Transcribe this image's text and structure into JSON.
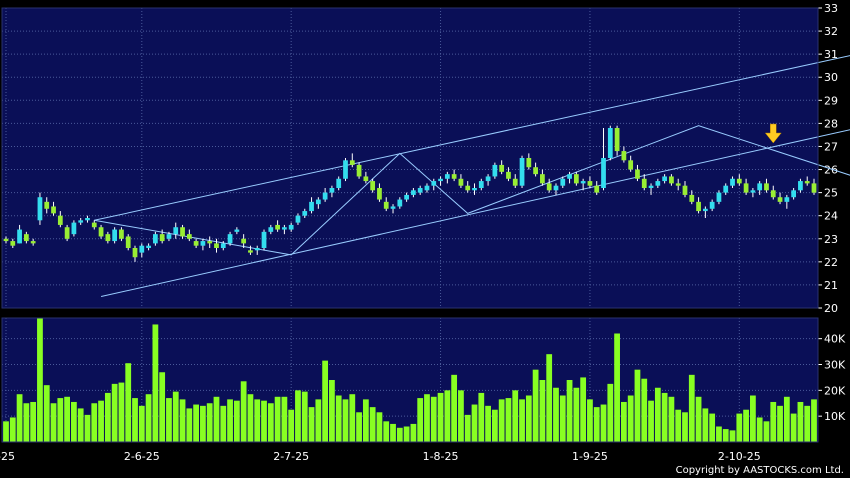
{
  "chart_data": {
    "type": "candlestick",
    "colors": {
      "background": "#000000",
      "panel": "#0a0f57",
      "grid": "#4a5a9a",
      "up": "#33ddee",
      "down": "#99ee33",
      "volume": "#88ff22",
      "trendline": "#99ccff",
      "arrow": "#ffcc22"
    },
    "price_axis": {
      "ylim": [
        20,
        33
      ],
      "ticks": [
        "20",
        "21",
        "22",
        "23",
        "24",
        "25",
        "26",
        "27",
        "28",
        "29",
        "30",
        "31",
        "32",
        "33"
      ]
    },
    "volume_axis": {
      "ylim": [
        0,
        48000
      ],
      "ticks": [
        "10K",
        "20K",
        "30K",
        "40K"
      ],
      "tick_values": [
        10000,
        20000,
        30000,
        40000
      ]
    },
    "x_ticks": [
      {
        "label": "-25",
        "index": 0
      },
      {
        "label": "2-6-25",
        "index": 20
      },
      {
        "label": "2-7-25",
        "index": 42
      },
      {
        "label": "1-8-25",
        "index": 64
      },
      {
        "label": "1-9-25",
        "index": 86
      },
      {
        "label": "2-10-25",
        "index": 108
      }
    ],
    "candles": [
      [
        23.0,
        23.1,
        22.8,
        22.9
      ],
      [
        22.9,
        23.0,
        22.6,
        22.7
      ],
      [
        22.8,
        23.6,
        22.8,
        23.4
      ],
      [
        23.2,
        23.3,
        22.8,
        22.9
      ],
      [
        22.9,
        23.0,
        22.7,
        22.8
      ],
      [
        23.8,
        25.0,
        23.6,
        24.8
      ],
      [
        24.6,
        24.8,
        24.1,
        24.3
      ],
      [
        24.4,
        24.6,
        24.0,
        24.1
      ],
      [
        24.0,
        24.2,
        23.5,
        23.6
      ],
      [
        23.5,
        23.6,
        22.9,
        23.0
      ],
      [
        23.2,
        23.8,
        23.1,
        23.7
      ],
      [
        23.7,
        23.9,
        23.6,
        23.8
      ],
      [
        23.8,
        24.0,
        23.7,
        23.9
      ],
      [
        23.7,
        23.8,
        23.4,
        23.5
      ],
      [
        23.5,
        23.6,
        23.0,
        23.1
      ],
      [
        23.2,
        23.3,
        22.8,
        22.9
      ],
      [
        22.9,
        23.5,
        22.8,
        23.4
      ],
      [
        23.4,
        23.5,
        22.9,
        23.0
      ],
      [
        23.1,
        23.2,
        22.5,
        22.6
      ],
      [
        22.6,
        22.7,
        22.0,
        22.2
      ],
      [
        22.4,
        22.8,
        22.2,
        22.7
      ],
      [
        22.6,
        22.8,
        22.5,
        22.7
      ],
      [
        22.8,
        23.3,
        22.7,
        23.2
      ],
      [
        23.2,
        23.4,
        22.8,
        22.9
      ],
      [
        23.0,
        23.3,
        22.9,
        23.2
      ],
      [
        23.2,
        23.7,
        23.0,
        23.5
      ],
      [
        23.5,
        23.6,
        23.0,
        23.1
      ],
      [
        23.2,
        23.4,
        22.9,
        23.0
      ],
      [
        22.9,
        23.0,
        22.6,
        22.7
      ],
      [
        22.7,
        23.0,
        22.5,
        22.9
      ],
      [
        22.9,
        23.1,
        22.6,
        22.8
      ],
      [
        22.8,
        23.0,
        22.4,
        22.6
      ],
      [
        22.6,
        22.9,
        22.5,
        22.8
      ],
      [
        22.8,
        23.3,
        22.7,
        23.2
      ],
      [
        23.3,
        23.5,
        23.2,
        23.4
      ],
      [
        23.0,
        23.2,
        22.6,
        22.8
      ],
      [
        22.5,
        22.7,
        22.3,
        22.4
      ],
      [
        22.5,
        22.7,
        22.3,
        22.6
      ],
      [
        22.6,
        23.4,
        22.5,
        23.3
      ],
      [
        23.3,
        23.6,
        23.2,
        23.5
      ],
      [
        23.6,
        23.8,
        23.3,
        23.4
      ],
      [
        23.4,
        23.6,
        23.2,
        23.5
      ],
      [
        23.4,
        23.7,
        23.3,
        23.6
      ],
      [
        23.7,
        24.1,
        23.6,
        24.0
      ],
      [
        24.0,
        24.3,
        23.9,
        24.2
      ],
      [
        24.2,
        24.8,
        24.1,
        24.6
      ],
      [
        24.5,
        24.8,
        24.3,
        24.7
      ],
      [
        24.7,
        25.2,
        24.6,
        25.0
      ],
      [
        25.0,
        25.3,
        24.8,
        25.2
      ],
      [
        25.2,
        25.7,
        25.1,
        25.6
      ],
      [
        25.6,
        26.5,
        25.5,
        26.4
      ],
      [
        26.4,
        26.7,
        26.1,
        26.2
      ],
      [
        26.2,
        26.3,
        25.6,
        25.7
      ],
      [
        25.7,
        25.9,
        25.4,
        25.5
      ],
      [
        25.5,
        25.6,
        25.0,
        25.1
      ],
      [
        25.2,
        25.4,
        24.6,
        24.7
      ],
      [
        24.6,
        24.8,
        24.2,
        24.3
      ],
      [
        24.3,
        24.5,
        24.1,
        24.4
      ],
      [
        24.4,
        24.8,
        24.3,
        24.7
      ],
      [
        24.7,
        25.0,
        24.6,
        24.9
      ],
      [
        24.9,
        25.2,
        24.8,
        25.1
      ],
      [
        25.0,
        25.3,
        24.9,
        25.2
      ],
      [
        25.1,
        25.4,
        25.0,
        25.3
      ],
      [
        25.3,
        25.6,
        25.1,
        25.5
      ],
      [
        25.5,
        25.7,
        25.3,
        25.6
      ],
      [
        25.6,
        25.9,
        25.4,
        25.8
      ],
      [
        25.8,
        26.0,
        25.5,
        25.6
      ],
      [
        25.6,
        25.8,
        25.2,
        25.3
      ],
      [
        25.3,
        25.5,
        25.0,
        25.1
      ],
      [
        25.1,
        25.4,
        24.9,
        25.2
      ],
      [
        25.2,
        25.6,
        25.1,
        25.5
      ],
      [
        25.5,
        25.8,
        25.3,
        25.7
      ],
      [
        25.7,
        26.3,
        25.6,
        26.2
      ],
      [
        26.2,
        26.4,
        25.8,
        25.9
      ],
      [
        25.9,
        26.1,
        25.5,
        25.6
      ],
      [
        25.6,
        25.8,
        25.2,
        25.3
      ],
      [
        25.3,
        26.6,
        25.2,
        26.5
      ],
      [
        26.5,
        26.7,
        26.0,
        26.1
      ],
      [
        26.1,
        26.3,
        25.7,
        25.8
      ],
      [
        25.8,
        26.0,
        25.3,
        25.4
      ],
      [
        25.4,
        25.6,
        25.0,
        25.1
      ],
      [
        25.1,
        25.4,
        24.9,
        25.3
      ],
      [
        25.3,
        25.7,
        25.2,
        25.6
      ],
      [
        25.6,
        25.9,
        25.4,
        25.8
      ],
      [
        25.8,
        25.9,
        25.3,
        25.4
      ],
      [
        25.4,
        25.6,
        25.1,
        25.5
      ],
      [
        25.5,
        25.7,
        25.2,
        25.3
      ],
      [
        25.3,
        25.5,
        24.9,
        25.0
      ],
      [
        25.2,
        27.8,
        25.1,
        26.5
      ],
      [
        26.5,
        27.9,
        26.4,
        27.8
      ],
      [
        27.8,
        27.9,
        26.6,
        26.8
      ],
      [
        26.8,
        27.0,
        26.3,
        26.4
      ],
      [
        26.4,
        26.6,
        25.9,
        26.0
      ],
      [
        26.0,
        26.2,
        25.5,
        25.6
      ],
      [
        25.6,
        25.8,
        25.1,
        25.2
      ],
      [
        25.2,
        25.4,
        24.9,
        25.3
      ],
      [
        25.3,
        25.6,
        25.2,
        25.5
      ],
      [
        25.5,
        25.8,
        25.4,
        25.7
      ],
      [
        25.7,
        25.8,
        25.3,
        25.4
      ],
      [
        25.4,
        25.6,
        25.1,
        25.3
      ],
      [
        25.3,
        25.5,
        24.8,
        24.9
      ],
      [
        24.9,
        25.1,
        24.5,
        24.6
      ],
      [
        24.6,
        24.8,
        24.1,
        24.2
      ],
      [
        24.2,
        24.4,
        23.9,
        24.3
      ],
      [
        24.3,
        24.7,
        24.2,
        24.6
      ],
      [
        24.6,
        25.1,
        24.5,
        25.0
      ],
      [
        25.0,
        25.4,
        24.9,
        25.3
      ],
      [
        25.3,
        25.7,
        25.2,
        25.6
      ],
      [
        25.6,
        25.8,
        25.3,
        25.4
      ],
      [
        25.4,
        25.6,
        24.9,
        25.0
      ],
      [
        25.0,
        25.2,
        24.8,
        25.1
      ],
      [
        25.1,
        25.5,
        24.9,
        25.4
      ],
      [
        25.4,
        25.6,
        25.0,
        25.1
      ],
      [
        25.1,
        25.3,
        24.7,
        24.8
      ],
      [
        24.8,
        25.0,
        24.5,
        24.6
      ],
      [
        24.6,
        24.9,
        24.3,
        24.8
      ],
      [
        24.8,
        25.2,
        24.7,
        25.1
      ],
      [
        25.1,
        25.6,
        25.0,
        25.5
      ],
      [
        25.5,
        25.7,
        25.3,
        25.4
      ],
      [
        25.4,
        25.6,
        24.9,
        25.0
      ]
    ],
    "volume": [
      8000,
      9500,
      18500,
      15000,
      15500,
      48000,
      22000,
      15000,
      17000,
      17500,
      15500,
      13000,
      10500,
      15000,
      16000,
      19000,
      22500,
      23000,
      30500,
      17000,
      14000,
      18500,
      45500,
      27000,
      17000,
      19500,
      16500,
      13000,
      14500,
      14000,
      15000,
      17500,
      14000,
      16500,
      16000,
      23500,
      18500,
      16500,
      16000,
      15000,
      17500,
      17500,
      12500,
      20000,
      19500,
      13500,
      16500,
      31500,
      24000,
      18000,
      16500,
      18500,
      11500,
      16500,
      13500,
      11500,
      8000,
      7000,
      5500,
      6000,
      7000,
      17000,
      18500,
      17500,
      19000,
      20000,
      26000,
      20000,
      10500,
      14500,
      19000,
      14000,
      12500,
      16500,
      17000,
      20000,
      16500,
      18000,
      28000,
      24000,
      34000,
      21000,
      18000,
      24000,
      21000,
      25000,
      16500,
      13500,
      14500,
      22500,
      42000,
      15500,
      18000,
      28000,
      24500,
      16000,
      21000,
      19000,
      17500,
      12500,
      11500,
      26000,
      17500,
      13000,
      11000,
      6000,
      5000,
      4500,
      11000,
      12500,
      18000,
      9500,
      8000,
      15500,
      14000,
      17500,
      11000,
      15500,
      14000,
      16500
    ],
    "trendlines": [
      {
        "points": [
          [
            13,
            23.8
          ],
          [
            42,
            22.3
          ],
          [
            58,
            26.7
          ],
          [
            68,
            24.1
          ],
          [
            102,
            27.9
          ],
          [
            128,
            25.4
          ]
        ]
      },
      {
        "points": [
          [
            13,
            23.8
          ],
          [
            130,
            31.3
          ]
        ]
      },
      {
        "points": [
          [
            14,
            20.5
          ],
          [
            130,
            28.1
          ]
        ]
      }
    ],
    "arrow_index": 113
  },
  "copyright": "Copyright by AASTOCKS.com Ltd."
}
